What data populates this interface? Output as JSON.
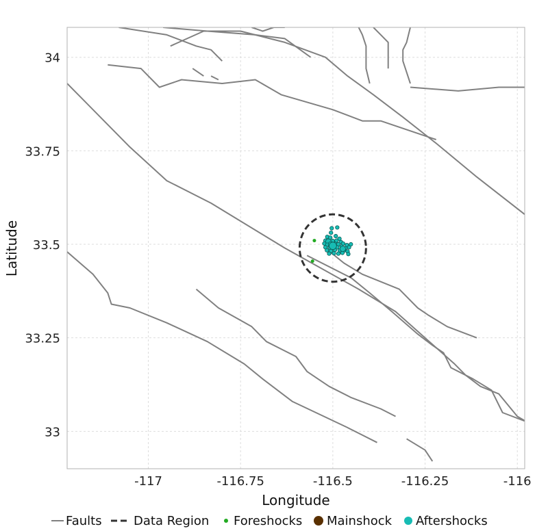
{
  "chart_data": {
    "type": "scatter",
    "xlabel": "Longitude",
    "ylabel": "Latitude",
    "xlim": [
      -117.22,
      -115.98
    ],
    "ylim": [
      32.9,
      34.08
    ],
    "xticks": [
      -117,
      -116.75,
      -116.5,
      -116.25,
      -116
    ],
    "xtick_labels": [
      "-117",
      "-116.75",
      "-116.5",
      "-116.25",
      "-116"
    ],
    "yticks": [
      33,
      33.25,
      33.5,
      33.75,
      34
    ],
    "ytick_labels": [
      "33",
      "33.25",
      "33.5",
      "33.75",
      "34"
    ],
    "grid": true,
    "legend_position": "bottom",
    "legend": [
      "Faults",
      "Data Region",
      "Foreshocks",
      "Mainshock",
      "Aftershocks"
    ],
    "colors": {
      "faults": "#808080",
      "region": "#333333",
      "foreshocks": "#22aa22",
      "mainshock": "#5a3000",
      "aftershocks": "#17bcb4",
      "aftershock_edge": "#0a5a55",
      "grid": "#dddddd"
    },
    "data_region": {
      "center": [
        -116.5,
        33.49
      ],
      "radius_deg": 0.09
    },
    "faults": [
      [
        [
          -117.22,
          33.93
        ],
        [
          -117.2,
          33.91
        ],
        [
          -117.05,
          33.76
        ],
        [
          -116.95,
          33.67
        ],
        [
          -116.83,
          33.61
        ],
        [
          -116.63,
          33.49
        ],
        [
          -116.43,
          33.38
        ],
        [
          -116.33,
          33.32
        ],
        [
          -116.25,
          33.25
        ],
        [
          -116.17,
          33.18
        ],
        [
          -116.14,
          33.15
        ],
        [
          -116.1,
          33.12
        ],
        [
          -116.05,
          33.1
        ],
        [
          -116.0,
          33.04
        ],
        [
          -115.93,
          33.0
        ],
        [
          -115.88,
          32.97
        ]
      ],
      [
        [
          -116.57,
          33.47
        ],
        [
          -116.45,
          33.41
        ],
        [
          -116.4,
          33.37
        ],
        [
          -116.34,
          33.32
        ],
        [
          -116.27,
          33.26
        ],
        [
          -116.23,
          33.23
        ],
        [
          -116.2,
          33.21
        ],
        [
          -116.18,
          33.17
        ],
        [
          -116.12,
          33.14
        ],
        [
          -116.07,
          33.11
        ],
        [
          -116.04,
          33.05
        ],
        [
          -115.96,
          33.02
        ],
        [
          -115.9,
          32.99
        ]
      ],
      [
        [
          -117.22,
          33.48
        ],
        [
          -117.15,
          33.42
        ],
        [
          -117.11,
          33.37
        ],
        [
          -117.1,
          33.34
        ],
        [
          -117.05,
          33.33
        ],
        [
          -116.95,
          33.29
        ],
        [
          -116.84,
          33.24
        ],
        [
          -116.74,
          33.18
        ],
        [
          -116.69,
          33.14
        ],
        [
          -116.61,
          33.08
        ],
        [
          -116.46,
          33.01
        ],
        [
          -116.38,
          32.97
        ]
      ],
      [
        [
          -116.87,
          33.38
        ],
        [
          -116.81,
          33.33
        ],
        [
          -116.72,
          33.28
        ],
        [
          -116.68,
          33.24
        ],
        [
          -116.6,
          33.2
        ],
        [
          -116.57,
          33.16
        ],
        [
          -116.54,
          33.14
        ],
        [
          -116.51,
          33.12
        ],
        [
          -116.45,
          33.09
        ],
        [
          -116.37,
          33.06
        ],
        [
          -116.33,
          33.04
        ]
      ],
      [
        [
          -116.52,
          33.49
        ],
        [
          -116.47,
          33.45
        ],
        [
          -116.42,
          33.42
        ],
        [
          -116.37,
          33.4
        ],
        [
          -116.32,
          33.38
        ],
        [
          -116.27,
          33.33
        ],
        [
          -116.24,
          33.31
        ],
        [
          -116.19,
          33.28
        ],
        [
          -116.11,
          33.25
        ]
      ],
      [
        [
          -116.3,
          32.98
        ],
        [
          -116.25,
          32.95
        ],
        [
          -116.23,
          32.92
        ]
      ],
      [
        [
          -117.11,
          33.98
        ],
        [
          -117.02,
          33.97
        ],
        [
          -116.97,
          33.92
        ],
        [
          -116.91,
          33.94
        ],
        [
          -116.8,
          33.93
        ],
        [
          -116.71,
          33.94
        ],
        [
          -116.64,
          33.9
        ],
        [
          -116.5,
          33.86
        ],
        [
          -116.42,
          33.83
        ],
        [
          -116.37,
          33.83
        ],
        [
          -116.22,
          33.78
        ]
      ],
      [
        [
          -117.08,
          34.08
        ],
        [
          -116.95,
          34.06
        ],
        [
          -116.87,
          34.03
        ],
        [
          -116.83,
          34.02
        ],
        [
          -116.8,
          33.99
        ]
      ],
      [
        [
          -116.96,
          34.08
        ],
        [
          -116.84,
          34.07
        ],
        [
          -116.71,
          34.06
        ],
        [
          -116.63,
          34.05
        ],
        [
          -116.56,
          34.0
        ]
      ],
      [
        [
          -116.94,
          34.03
        ],
        [
          -116.85,
          34.07
        ],
        [
          -116.75,
          34.07
        ],
        [
          -116.63,
          34.04
        ],
        [
          -116.52,
          34.0
        ],
        [
          -116.46,
          33.95
        ],
        [
          -116.39,
          33.9
        ],
        [
          -116.31,
          33.84
        ],
        [
          -116.22,
          33.77
        ],
        [
          -116.11,
          33.68
        ],
        [
          -115.98,
          33.58
        ]
      ],
      [
        [
          -116.72,
          34.08
        ],
        [
          -116.69,
          34.07
        ],
        [
          -116.66,
          34.08
        ],
        [
          -116.63,
          34.08
        ]
      ],
      [
        [
          -116.43,
          34.08
        ],
        [
          -116.42,
          34.06
        ],
        [
          -116.41,
          34.03
        ],
        [
          -116.41,
          33.97
        ],
        [
          -116.4,
          33.93
        ]
      ],
      [
        [
          -116.39,
          34.08
        ],
        [
          -116.37,
          34.06
        ],
        [
          -116.35,
          34.04
        ],
        [
          -116.35,
          33.97
        ]
      ],
      [
        [
          -116.29,
          34.08
        ],
        [
          -116.3,
          34.04
        ],
        [
          -116.31,
          34.02
        ],
        [
          -116.31,
          33.99
        ],
        [
          -116.3,
          33.96
        ],
        [
          -116.29,
          33.93
        ]
      ],
      [
        [
          -116.29,
          33.92
        ],
        [
          -116.16,
          33.91
        ],
        [
          -116.05,
          33.92
        ],
        [
          -115.98,
          33.92
        ]
      ],
      [
        [
          -116.88,
          33.97
        ],
        [
          -116.85,
          33.95
        ]
      ],
      [
        [
          -116.83,
          33.95
        ],
        [
          -116.81,
          33.94
        ]
      ]
    ],
    "foreshocks": [
      {
        "lon": -116.55,
        "lat": 33.51
      },
      {
        "lon": -116.555,
        "lat": 33.455
      }
    ],
    "mainshock": [],
    "aftershocks": [
      {
        "lon": -116.503,
        "lat": 33.543,
        "size": 2
      },
      {
        "lon": -116.488,
        "lat": 33.545,
        "size": 2
      },
      {
        "lon": -116.505,
        "lat": 33.531,
        "size": 2
      },
      {
        "lon": -116.515,
        "lat": 33.52,
        "size": 2
      },
      {
        "lon": -116.507,
        "lat": 33.518,
        "size": 2
      },
      {
        "lon": -116.492,
        "lat": 33.522,
        "size": 2
      },
      {
        "lon": -116.482,
        "lat": 33.515,
        "size": 2
      },
      {
        "lon": -116.52,
        "lat": 33.51,
        "size": 2
      },
      {
        "lon": -116.512,
        "lat": 33.507,
        "size": 3
      },
      {
        "lon": -116.5,
        "lat": 33.509,
        "size": 2
      },
      {
        "lon": -116.49,
        "lat": 33.51,
        "size": 2
      },
      {
        "lon": -116.478,
        "lat": 33.506,
        "size": 2
      },
      {
        "lon": -116.523,
        "lat": 33.502,
        "size": 2
      },
      {
        "lon": -116.515,
        "lat": 33.499,
        "size": 2
      },
      {
        "lon": -116.505,
        "lat": 33.5,
        "size": 3
      },
      {
        "lon": -116.495,
        "lat": 33.499,
        "size": 3
      },
      {
        "lon": -116.485,
        "lat": 33.5,
        "size": 2
      },
      {
        "lon": -116.472,
        "lat": 33.502,
        "size": 2
      },
      {
        "lon": -116.462,
        "lat": 33.498,
        "size": 2
      },
      {
        "lon": -116.451,
        "lat": 33.5,
        "size": 2
      },
      {
        "lon": -116.52,
        "lat": 33.492,
        "size": 2
      },
      {
        "lon": -116.508,
        "lat": 33.491,
        "size": 2
      },
      {
        "lon": -116.498,
        "lat": 33.493,
        "size": 2
      },
      {
        "lon": -116.488,
        "lat": 33.492,
        "size": 2
      },
      {
        "lon": -116.476,
        "lat": 33.494,
        "size": 2
      },
      {
        "lon": -116.466,
        "lat": 33.49,
        "size": 2
      },
      {
        "lon": -116.456,
        "lat": 33.492,
        "size": 2
      },
      {
        "lon": -116.516,
        "lat": 33.484,
        "size": 2
      },
      {
        "lon": -116.505,
        "lat": 33.482,
        "size": 2
      },
      {
        "lon": -116.494,
        "lat": 33.485,
        "size": 2
      },
      {
        "lon": -116.481,
        "lat": 33.484,
        "size": 2
      },
      {
        "lon": -116.47,
        "lat": 33.483,
        "size": 2
      },
      {
        "lon": -116.46,
        "lat": 33.481,
        "size": 2
      },
      {
        "lon": -116.51,
        "lat": 33.475,
        "size": 2
      },
      {
        "lon": -116.497,
        "lat": 33.476,
        "size": 2
      },
      {
        "lon": -116.485,
        "lat": 33.475,
        "size": 2
      },
      {
        "lon": -116.474,
        "lat": 33.477,
        "size": 2
      },
      {
        "lon": -116.458,
        "lat": 33.474,
        "size": 2
      },
      {
        "lon": -116.5,
        "lat": 33.496,
        "size": 4
      },
      {
        "lon": -116.473,
        "lat": 33.488,
        "size": 3
      }
    ]
  }
}
